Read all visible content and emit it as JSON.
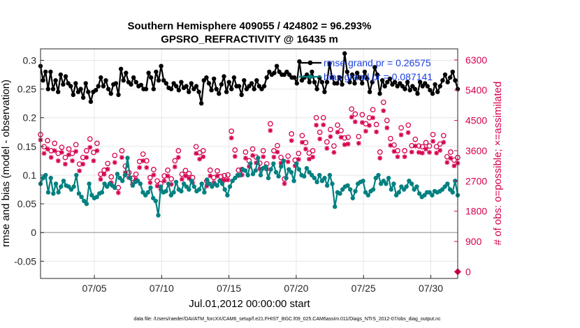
{
  "chart_data": {
    "type": "line",
    "title": "Southern Hemisphere 409055 / 424802 = 96.293%",
    "subtitle": "GPSRO_REFRACTIVITY @ 16435 m",
    "xlabel": "Jul.01,2012 00:00:00 start",
    "ylabel_left": "rmse and bias (model - observation)",
    "ylabel_right": "# of obs: o=possible; ×=assimilated",
    "footer": "data file: /Users/raeder/DAI/ATM_forcXX/CAM6_setup/f.e21.FHIST_BGC.f09_025.CAM6assim.011/Diags_NTrS_2012-07/obs_diag_output.nc",
    "x_ticks": [
      "07/05",
      "07/10",
      "07/15",
      "07/20",
      "07/25",
      "07/30"
    ],
    "y_ticks_left": [
      "-0.05",
      "0",
      "0.05",
      "0.1",
      "0.15",
      "0.2",
      "0.25",
      "0.3"
    ],
    "y_ticks_right": [
      "0",
      "900",
      "1800",
      "2700",
      "3600",
      "4500",
      "5400",
      "6300"
    ],
    "ylim_left": [
      -0.08,
      0.32
    ],
    "ylim_right": [
      -200,
      6630
    ],
    "xlim_days": [
      1,
      32
    ],
    "grid": true,
    "legend_position": "top-right",
    "colors": {
      "rmse": "#000000",
      "bias": "#008080",
      "obs": "#d6004f",
      "zero_line": "#b0b0b0",
      "grid": "#e6e6e6"
    },
    "series": [
      {
        "name": "rmse grand pr = 0.26575",
        "axis": "left",
        "marker": "dot",
        "values": [
          0.29,
          0.265,
          0.28,
          0.25,
          0.28,
          0.25,
          0.265,
          0.245,
          0.275,
          0.258,
          0.272,
          0.26,
          0.255,
          0.24,
          0.26,
          0.245,
          0.25,
          0.235,
          0.26,
          0.245,
          0.228,
          0.245,
          0.248,
          0.255,
          0.27,
          0.255,
          0.265,
          0.25,
          0.242,
          0.258,
          0.26,
          0.24,
          0.285,
          0.265,
          0.278,
          0.262,
          0.258,
          0.27,
          0.262,
          0.255,
          0.257,
          0.25,
          0.25,
          0.278,
          0.27,
          0.25,
          0.28,
          0.265,
          0.29,
          0.265,
          0.26,
          0.252,
          0.25,
          0.26,
          0.255,
          0.248,
          0.262,
          0.252,
          0.255,
          0.245,
          0.26,
          0.25,
          0.255,
          0.245,
          0.225,
          0.265,
          0.27,
          0.26,
          0.248,
          0.268,
          0.25,
          0.242,
          0.258,
          0.272,
          0.245,
          0.262,
          0.25,
          0.27,
          0.255,
          0.255,
          0.24,
          0.265,
          0.25,
          0.255,
          0.26,
          0.25,
          0.265,
          0.255,
          0.25,
          0.255,
          0.27,
          0.28,
          0.275,
          0.278,
          0.29,
          0.28,
          0.275,
          0.275,
          0.28,
          0.275,
          0.27,
          0.27,
          0.26,
          0.298,
          0.265,
          0.27,
          0.275,
          0.262,
          0.28,
          0.262,
          0.25,
          0.27,
          0.262,
          0.245,
          0.262,
          0.295,
          0.27,
          0.26,
          0.26,
          0.27,
          0.258,
          0.312,
          0.28,
          0.262,
          0.275,
          0.26,
          0.278,
          0.27,
          0.26,
          0.28,
          0.268,
          0.245,
          0.262,
          0.288,
          0.275,
          0.242,
          0.265,
          0.255,
          0.262,
          0.268,
          0.258,
          0.262,
          0.255,
          0.26,
          0.255,
          0.25,
          0.262,
          0.248,
          0.255,
          0.25,
          0.242,
          0.262,
          0.255,
          0.26,
          0.255,
          0.248,
          0.242,
          0.258,
          0.245,
          0.255,
          0.265,
          0.275,
          0.262,
          0.27,
          0.28,
          0.265,
          0.25
        ]
      },
      {
        "name": "bias grand pr = 0.087141",
        "axis": "left",
        "marker": "dot",
        "values": [
          0.085,
          0.095,
          0.1,
          0.07,
          0.095,
          0.068,
          0.085,
          0.07,
          0.08,
          0.09,
          0.082,
          0.08,
          0.075,
          0.08,
          0.1,
          0.068,
          0.062,
          0.055,
          0.05,
          0.085,
          0.065,
          0.06,
          0.062,
          0.068,
          0.07,
          0.085,
          0.08,
          0.085,
          0.082,
          0.078,
          0.102,
          0.095,
          0.09,
          0.1,
          0.13,
          0.095,
          0.082,
          0.088,
          0.09,
          0.085,
          0.07,
          0.065,
          0.07,
          0.078,
          0.06,
          0.055,
          0.03,
          0.08,
          0.07,
          0.072,
          0.085,
          0.065,
          0.07,
          0.088,
          0.075,
          0.072,
          0.085,
          0.08,
          0.075,
          0.09,
          0.08,
          0.072,
          0.075,
          0.085,
          0.07,
          0.092,
          0.085,
          0.08,
          0.085,
          0.082,
          0.09,
          0.085,
          0.075,
          0.065,
          0.08,
          0.09,
          0.095,
          0.1,
          0.1,
          0.11,
          0.108,
          0.1,
          0.12,
          0.102,
          0.108,
          0.13,
          0.1,
          0.112,
          0.115,
          0.095,
          0.11,
          0.12,
          0.105,
          0.098,
          0.115,
          0.125,
          0.095,
          0.11,
          0.105,
          0.09,
          0.12,
          0.11,
          0.1,
          0.098,
          0.112,
          0.105,
          0.1,
          0.095,
          0.088,
          0.1,
          0.09,
          0.095,
          0.082,
          0.1,
          0.085,
          0.045,
          0.07,
          0.068,
          0.075,
          0.08,
          0.082,
          0.075,
          0.06,
          0.072,
          0.085,
          0.088,
          0.09,
          0.07,
          0.065,
          0.072,
          0.075,
          0.095,
          0.1,
          0.085,
          0.09,
          0.085,
          0.095,
          0.075,
          0.085,
          0.065,
          0.07,
          0.08,
          0.075,
          0.08,
          0.09,
          0.085,
          0.075,
          0.08,
          0.068,
          0.062,
          0.065,
          0.07,
          0.07,
          0.065,
          0.072,
          0.07,
          0.072,
          0.075,
          0.08,
          0.085,
          0.075,
          0.07,
          0.09,
          0.065
        ]
      },
      {
        "name": "possible",
        "axis": "right",
        "marker": "circle",
        "values": [
          4080,
          3720,
          3900,
          3600,
          3820,
          3520,
          3700,
          3400,
          3650,
          3520,
          3780,
          3200,
          3400,
          3600,
          3950,
          3550,
          3820,
          2900,
          3020,
          3220,
          2820,
          3460,
          2500,
          3600,
          3140,
          2950,
          2780,
          2900,
          3280,
          3500,
          3300,
          2800,
          3040,
          2700,
          2620,
          2850,
          3020,
          2760,
          3300,
          3600,
          2900,
          3010,
          2920,
          2800,
          3720,
          3540,
          3600,
          2700,
          3020,
          2800,
          3000,
          2830,
          2860,
          2880,
          4180,
          3620,
          3020,
          3040,
          3560,
          3300,
          3650,
          3410,
          3230,
          3600,
          3210,
          4400,
          3600,
          3750,
          3400,
          2760,
          3440,
          4100,
          3320,
          3520,
          4050,
          3840,
          3530,
          3600,
          4580,
          4150,
          4580,
          3860,
          4230,
          3740,
          4360,
          4200,
          3980,
          4000,
          4840,
          4690,
          4020,
          4670,
          4400,
          4580,
          4820,
          4380,
          3560,
          5040,
          4500,
          3960,
          3770,
          3600,
          4280,
          3600,
          4360,
          3750,
          3940,
          3740,
          3720,
          3840,
          3740,
          4080,
          3720,
          3800,
          4050,
          3420,
          3560,
          3320,
          3400
        ]
      },
      {
        "name": "assimilated",
        "axis": "right",
        "marker": "cross",
        "values": [
          3920,
          3520,
          3650,
          3400,
          3600,
          3300,
          3550,
          3200,
          3480,
          3300,
          3580,
          3000,
          3200,
          3400,
          3700,
          3300,
          3600,
          2750,
          2900,
          3050,
          2650,
          3250,
          2350,
          3400,
          2950,
          2800,
          2600,
          2750,
          3100,
          3300,
          3100,
          2650,
          2880,
          2550,
          2450,
          2700,
          2850,
          2600,
          3120,
          3400,
          2750,
          2850,
          2780,
          2650,
          3520,
          3350,
          3420,
          2550,
          2850,
          2650,
          2850,
          2700,
          2720,
          2730,
          3980,
          3430,
          2860,
          2880,
          3380,
          3130,
          3460,
          3240,
          3060,
          3420,
          3050,
          4200,
          3410,
          3560,
          3230,
          2620,
          3270,
          3900,
          3150,
          3340,
          3850,
          3650,
          3350,
          3410,
          4360,
          3950,
          4370,
          3670,
          4020,
          3550,
          4150,
          4000,
          3780,
          3800,
          4600,
          4460,
          3820,
          4440,
          4180,
          4350,
          4580,
          4160,
          3380,
          4790,
          4280,
          3760,
          3580,
          3420,
          4070,
          3420,
          4140,
          3560,
          3740,
          3550,
          3530,
          3650,
          3550,
          3880,
          3530,
          3610,
          3850,
          3250,
          3380,
          3150,
          3230
        ]
      }
    ]
  }
}
